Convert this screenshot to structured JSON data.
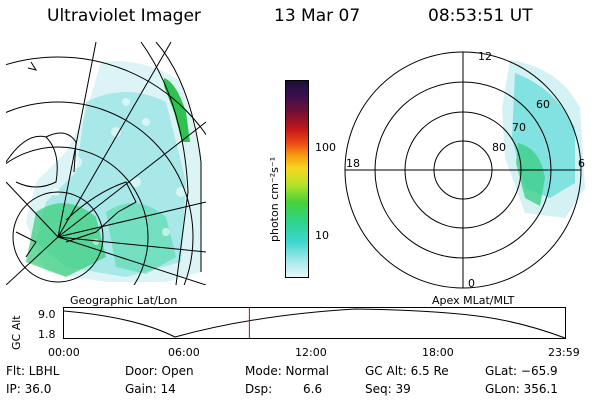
{
  "header": {
    "title": "Ultraviolet Imager",
    "date": "13 Mar 07",
    "time": "08:53:51 UT"
  },
  "colorbar": {
    "unit_label": "photon cm⁻²s⁻¹",
    "ticks": [
      "100",
      "10"
    ]
  },
  "polar": {
    "labels": {
      "top": "12",
      "left": "18",
      "right": "6",
      "bottom": "0"
    },
    "rings": [
      "60",
      "70",
      "80"
    ]
  },
  "panels": {
    "left_title": "Geographic Lat/Lon",
    "right_title": "Apex MLat/MLT"
  },
  "altitude_plot": {
    "ylabel": "GC Alt",
    "y_ticks": [
      "9.0",
      "1.8"
    ],
    "x_ticks": [
      "00:00",
      "06:00",
      "12:00",
      "18:00",
      "23:59"
    ],
    "current_time_marker_fraction": 0.37
  },
  "info": {
    "row1": {
      "flt": "Flt: LBHL",
      "door": "Door: Open",
      "mode": "Mode: Normal",
      "gcalt": "GC Alt: 6.5 Re",
      "glat": "GLat: −65.9"
    },
    "row2": {
      "ip": "IP: 36.0",
      "gain": "Gain: 14",
      "dsp_label": "Dsp:",
      "dsp_value": "6.6",
      "seq": "Seq: 39",
      "glon": "GLon: 356.1"
    }
  },
  "colors": {
    "marker": "#cc0000",
    "aurora_green": "#2bd37a",
    "aurora_cyan": "#58d8d2"
  }
}
